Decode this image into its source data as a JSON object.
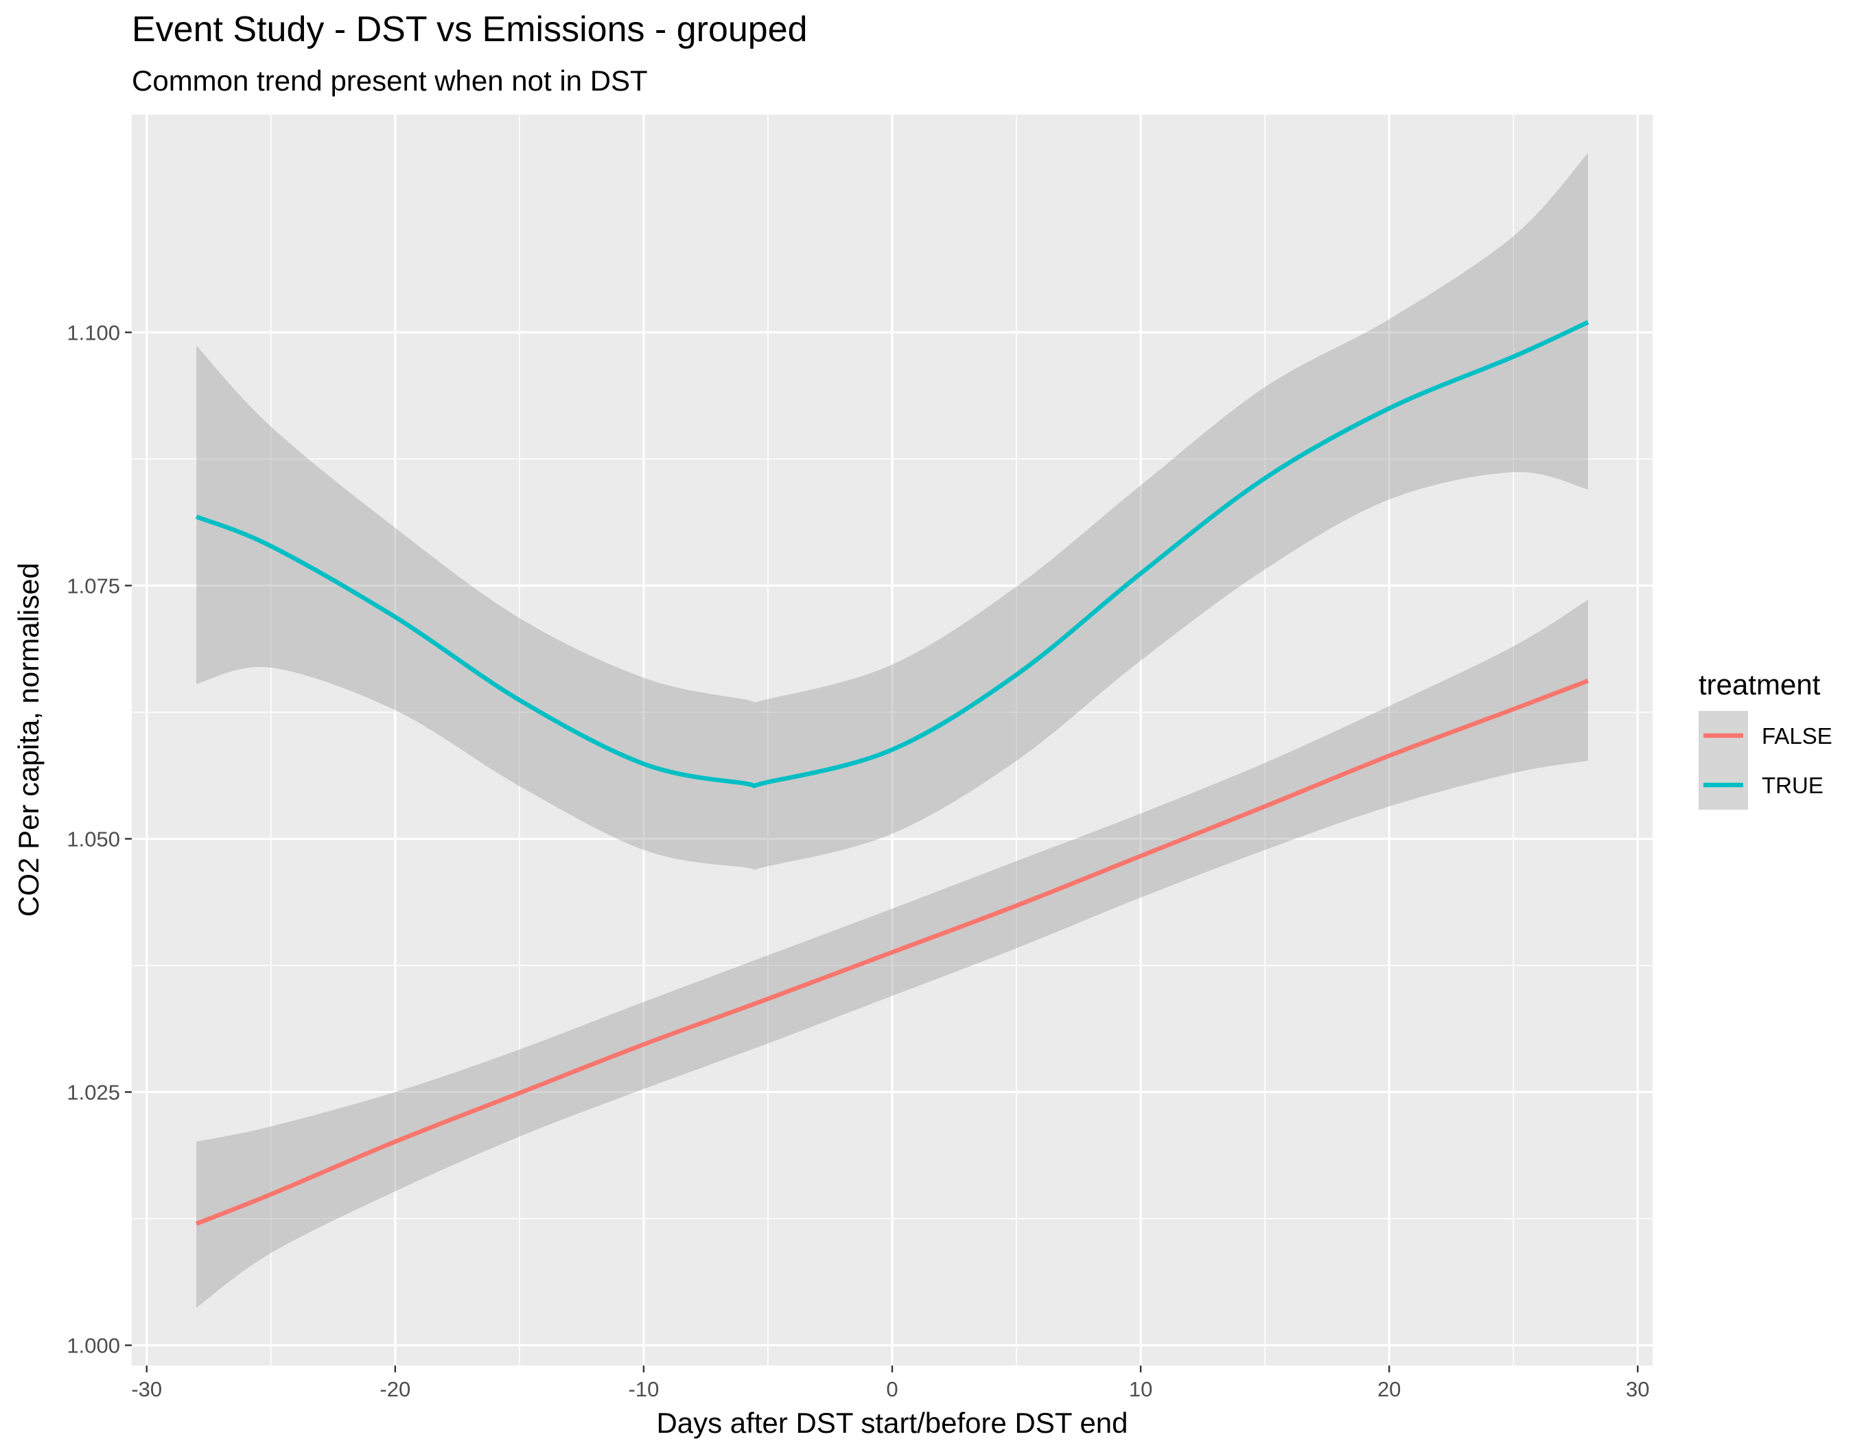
{
  "chart_data": {
    "type": "line",
    "title": "Event Study - DST vs Emissions - grouped",
    "subtitle": "Common trend present when not in DST",
    "xlabel": "Days after DST start/before DST end",
    "ylabel": "CO2 Per capita, normalised",
    "xlim": [
      -30.6,
      30.6
    ],
    "ylim": [
      0.998,
      1.1215
    ],
    "x_ticks": [
      -30,
      -20,
      -10,
      0,
      10,
      20,
      30
    ],
    "x_tick_labels": [
      "-30",
      "-20",
      "-10",
      "0",
      "10",
      "20",
      "30"
    ],
    "y_ticks": [
      1.0,
      1.025,
      1.05,
      1.075,
      1.1
    ],
    "y_tick_labels": [
      "1.000",
      "1.025",
      "1.050",
      "1.075",
      "1.100"
    ],
    "grid": true,
    "legend": {
      "title": "treatment",
      "position": "right"
    },
    "band_color": "#999999",
    "series": [
      {
        "name": "FALSE",
        "color": "#F8766D",
        "x": [
          -28,
          -25,
          -20,
          -15,
          -10,
          -5,
          0,
          5,
          10,
          15,
          20,
          25,
          28
        ],
        "y": [
          1.012,
          1.0149,
          1.0201,
          1.0249,
          1.0297,
          1.0342,
          1.0388,
          1.0434,
          1.0483,
          1.0532,
          1.0582,
          1.0628,
          1.0656
        ],
        "lower": [
          1.0037,
          1.0091,
          1.0152,
          1.0206,
          1.0253,
          1.0298,
          1.0345,
          1.0392,
          1.0442,
          1.0489,
          1.0532,
          1.0565,
          1.0577
        ],
        "upper": [
          1.0201,
          1.0216,
          1.025,
          1.0292,
          1.0339,
          1.0385,
          1.0431,
          1.0478,
          1.0525,
          1.0575,
          1.0631,
          1.069,
          1.0736
        ]
      },
      {
        "name": "TRUE",
        "color": "#00BFC4",
        "x": [
          -28,
          -25,
          -20,
          -15,
          -10,
          -6,
          -5,
          0,
          5,
          10,
          15,
          20,
          25,
          28
        ],
        "y": [
          1.0818,
          1.0789,
          1.0719,
          1.0637,
          1.0574,
          1.0555,
          1.0556,
          1.0588,
          1.0662,
          1.0762,
          1.0856,
          1.0925,
          1.0976,
          1.101
        ],
        "lower": [
          1.0653,
          1.0669,
          1.0627,
          1.0552,
          1.0489,
          1.0472,
          1.0473,
          1.0505,
          1.0577,
          1.0676,
          1.0766,
          1.0835,
          1.0862,
          1.0845
        ],
        "upper": [
          1.0987,
          1.0907,
          1.0807,
          1.0718,
          1.0659,
          1.0638,
          1.0638,
          1.0672,
          1.0749,
          1.0849,
          1.0946,
          1.1013,
          1.1095,
          1.1177
        ]
      }
    ]
  }
}
